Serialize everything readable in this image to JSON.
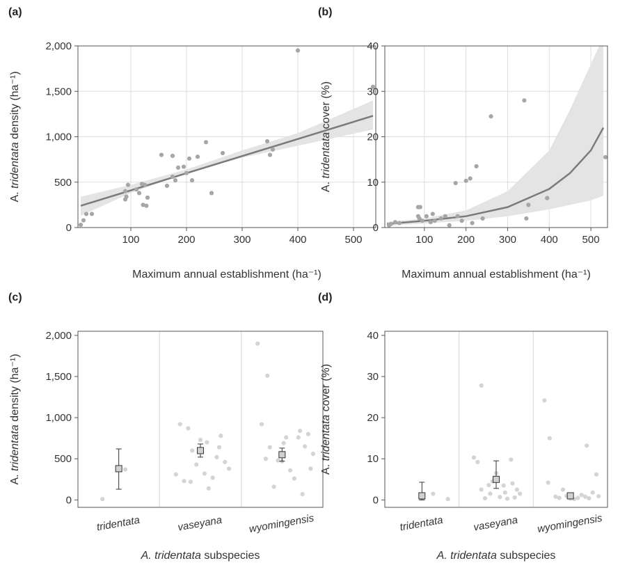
{
  "colors": {
    "point_gray": "#a6a6a6",
    "point_light": "#d4d4d4",
    "line": "#7a7a7a",
    "band": "#e4e4e4",
    "grid": "#dddddd",
    "frame": "#555555"
  },
  "chart_data": [
    {
      "id": "a",
      "panel_label": "(a)",
      "type": "scatter",
      "xlabel": "Maximum annual establishment (ha⁻¹)",
      "ylabel_parts": [
        "A. ",
        "tridentata",
        " density (ha⁻¹)"
      ],
      "xlim": [
        5,
        540
      ],
      "ylim": [
        0,
        2000
      ],
      "xticks": [
        100,
        200,
        300,
        400,
        500
      ],
      "yticks": [
        0,
        500,
        1000,
        1500,
        2000
      ],
      "ytick_labels": [
        "0",
        "500",
        "1,000",
        "1,500",
        "2,000"
      ],
      "points": [
        [
          10,
          30
        ],
        [
          15,
          80
        ],
        [
          20,
          150
        ],
        [
          30,
          150
        ],
        [
          90,
          310
        ],
        [
          92,
          340
        ],
        [
          90,
          400
        ],
        [
          95,
          470
        ],
        [
          110,
          420
        ],
        [
          115,
          380
        ],
        [
          120,
          480
        ],
        [
          125,
          470
        ],
        [
          122,
          250
        ],
        [
          128,
          240
        ],
        [
          130,
          330
        ],
        [
          155,
          800
        ],
        [
          165,
          460
        ],
        [
          175,
          560
        ],
        [
          175,
          790
        ],
        [
          180,
          520
        ],
        [
          185,
          660
        ],
        [
          195,
          670
        ],
        [
          200,
          600
        ],
        [
          205,
          760
        ],
        [
          210,
          520
        ],
        [
          220,
          780
        ],
        [
          235,
          940
        ],
        [
          245,
          380
        ],
        [
          265,
          820
        ],
        [
          345,
          950
        ],
        [
          350,
          800
        ],
        [
          355,
          860
        ],
        [
          400,
          1950
        ],
        [
          535,
          1550
        ]
      ],
      "fit": {
        "x": [
          10,
          535
        ],
        "y": [
          240,
          1230
        ]
      },
      "band": {
        "x": [
          10,
          100,
          200,
          300,
          400,
          535
        ],
        "lower": [
          130,
          380,
          600,
          770,
          900,
          1080
        ],
        "upper": [
          340,
          470,
          640,
          850,
          1040,
          1400
        ]
      }
    },
    {
      "id": "b",
      "panel_label": "(b)",
      "type": "scatter",
      "xlabel": "Maximum annual establishment (ha⁻¹)",
      "ylabel_parts": [
        "A. ",
        "tridentata",
        " cover (%)"
      ],
      "xlim": [
        5,
        540
      ],
      "ylim": [
        0,
        40
      ],
      "xticks": [
        100,
        200,
        300,
        400,
        500
      ],
      "yticks": [
        0,
        10,
        20,
        30,
        40
      ],
      "ytick_labels": [
        "0",
        "10",
        "20",
        "30",
        "40"
      ],
      "points": [
        [
          15,
          0.5
        ],
        [
          20,
          0.8
        ],
        [
          30,
          1.2
        ],
        [
          40,
          1.0
        ],
        [
          85,
          4.5
        ],
        [
          90,
          4.5
        ],
        [
          85,
          2.5
        ],
        [
          88,
          2.0
        ],
        [
          95,
          1.5
        ],
        [
          105,
          2.5
        ],
        [
          115,
          1.2
        ],
        [
          120,
          3.0
        ],
        [
          125,
          1.5
        ],
        [
          140,
          2.0
        ],
        [
          150,
          2.5
        ],
        [
          160,
          0.5
        ],
        [
          175,
          9.8
        ],
        [
          180,
          2.5
        ],
        [
          190,
          1.5
        ],
        [
          200,
          10.3
        ],
        [
          210,
          10.8
        ],
        [
          215,
          1.0
        ],
        [
          225,
          13.5
        ],
        [
          240,
          2.0
        ],
        [
          260,
          24.5
        ],
        [
          340,
          28.0
        ],
        [
          345,
          2.0
        ],
        [
          350,
          5.0
        ],
        [
          395,
          6.5
        ],
        [
          535,
          15.5
        ]
      ],
      "fit": {
        "x": [
          10,
          100,
          200,
          300,
          400,
          450,
          500,
          530
        ],
        "y": [
          0.8,
          1.5,
          2.5,
          4.5,
          8.5,
          12.0,
          17.0,
          22.0
        ]
      },
      "band": {
        "x": [
          10,
          100,
          200,
          300,
          400,
          450,
          500,
          530
        ],
        "lower": [
          0.4,
          0.9,
          1.5,
          2.5,
          4.0,
          5.0,
          6.0,
          7.0
        ],
        "upper": [
          1.2,
          2.0,
          3.8,
          8.0,
          17.0,
          26.0,
          36.0,
          42.0
        ]
      }
    },
    {
      "id": "c",
      "panel_label": "(c)",
      "type": "scatter",
      "xlabel_parts": [
        "A. tridentata",
        " subspecies"
      ],
      "ylabel_parts": [
        "A. ",
        "tridentata",
        " density (ha⁻¹)"
      ],
      "ylim": [
        -90,
        2050
      ],
      "yticks": [
        0,
        500,
        1000,
        1500,
        2000
      ],
      "ytick_labels": [
        "0",
        "500",
        "1,000",
        "1,500",
        "2,000"
      ],
      "categories": [
        "tridentata",
        "vaseyana",
        "wyomingensis"
      ],
      "groups": [
        {
          "mean": 380,
          "lower": 130,
          "upper": 620,
          "points": [
            [
              0.3,
              10
            ],
            [
              0.58,
              370
            ]
          ]
        },
        {
          "mean": 600,
          "lower": 520,
          "upper": 680,
          "points": [
            [
              0.2,
              310
            ],
            [
              0.25,
              920
            ],
            [
              0.3,
              230
            ],
            [
              0.35,
              870
            ],
            [
              0.38,
              220
            ],
            [
              0.4,
              600
            ],
            [
              0.45,
              430
            ],
            [
              0.5,
              730
            ],
            [
              0.55,
              320
            ],
            [
              0.58,
              700
            ],
            [
              0.6,
              140
            ],
            [
              0.65,
              270
            ],
            [
              0.7,
              520
            ],
            [
              0.73,
              640
            ],
            [
              0.75,
              780
            ],
            [
              0.8,
              460
            ],
            [
              0.85,
              380
            ]
          ]
        },
        {
          "mean": 550,
          "lower": 470,
          "upper": 630,
          "points": [
            [
              0.2,
              1900
            ],
            [
              0.25,
              920
            ],
            [
              0.3,
              500
            ],
            [
              0.32,
              1510
            ],
            [
              0.35,
              640
            ],
            [
              0.4,
              160
            ],
            [
              0.45,
              480
            ],
            [
              0.5,
              470
            ],
            [
              0.52,
              690
            ],
            [
              0.55,
              760
            ],
            [
              0.6,
              360
            ],
            [
              0.65,
              260
            ],
            [
              0.7,
              760
            ],
            [
              0.72,
              840
            ],
            [
              0.75,
              70
            ],
            [
              0.78,
              650
            ],
            [
              0.82,
              800
            ],
            [
              0.85,
              380
            ],
            [
              0.88,
              560
            ]
          ]
        }
      ]
    },
    {
      "id": "d",
      "panel_label": "(d)",
      "type": "scatter",
      "xlabel_parts": [
        "A. tridentata",
        " subspecies"
      ],
      "ylabel_parts": [
        "A. ",
        "tridentata",
        " cover (%)"
      ],
      "ylim": [
        -1.8,
        41
      ],
      "yticks": [
        0,
        10,
        20,
        30,
        40
      ],
      "ytick_labels": [
        "0",
        "10",
        "20",
        "30",
        "40"
      ],
      "categories": [
        "tridentata",
        "vaseyana",
        "wyomingensis"
      ],
      "groups": [
        {
          "mean": 1.0,
          "lower": 0,
          "upper": 4.3,
          "points": [
            [
              0.65,
              1.5
            ],
            [
              0.85,
              0.2
            ]
          ]
        },
        {
          "mean": 5.0,
          "lower": 2.8,
          "upper": 9.5,
          "points": [
            [
              0.2,
              10.3
            ],
            [
              0.25,
              9.2
            ],
            [
              0.3,
              27.8
            ],
            [
              0.3,
              2.5
            ],
            [
              0.35,
              0.4
            ],
            [
              0.4,
              3.6
            ],
            [
              0.42,
              1.5
            ],
            [
              0.45,
              4.5
            ],
            [
              0.5,
              6.5
            ],
            [
              0.55,
              0.7
            ],
            [
              0.6,
              3.5
            ],
            [
              0.62,
              1.8
            ],
            [
              0.65,
              0.3
            ],
            [
              0.7,
              9.8
            ],
            [
              0.72,
              4.0
            ],
            [
              0.75,
              0.6
            ],
            [
              0.78,
              2.5
            ],
            [
              0.82,
              1.5
            ]
          ]
        },
        {
          "mean": 1.0,
          "lower": 0.5,
          "upper": 1.5,
          "points": [
            [
              0.15,
              24.2
            ],
            [
              0.2,
              4.2
            ],
            [
              0.22,
              15.0
            ],
            [
              0.3,
              0.8
            ],
            [
              0.35,
              0.5
            ],
            [
              0.4,
              2.5
            ],
            [
              0.45,
              1.0
            ],
            [
              0.5,
              0.3
            ],
            [
              0.55,
              0.2
            ],
            [
              0.6,
              0.5
            ],
            [
              0.65,
              1.2
            ],
            [
              0.7,
              0.8
            ],
            [
              0.72,
              13.2
            ],
            [
              0.75,
              0.4
            ],
            [
              0.8,
              1.8
            ],
            [
              0.85,
              6.2
            ],
            [
              0.88,
              0.9
            ]
          ]
        }
      ]
    }
  ]
}
